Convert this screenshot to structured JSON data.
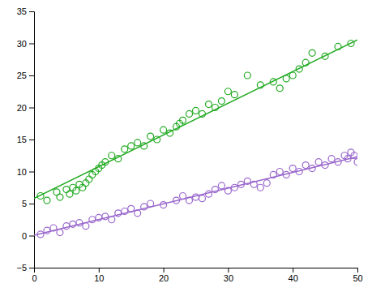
{
  "chart_data": {
    "type": "scatter",
    "xlim": [
      0,
      50
    ],
    "ylim": [
      -5,
      35
    ],
    "xticks": [
      0,
      10,
      20,
      30,
      40,
      50
    ],
    "yticks": [
      {
        "value": -5,
        "label": "−5"
      },
      0,
      5,
      10,
      15,
      20,
      25,
      30,
      35
    ],
    "grid": false,
    "series": [
      {
        "type": "line",
        "line_style": "solid",
        "color": "#22AA22",
        "x": [
          0,
          50
        ],
        "values": [
          5.8,
          30.55
        ]
      },
      {
        "type": "scatter",
        "marker": "circle",
        "color": "#22AA22",
        "x": [
          1.0,
          2.0,
          3.5,
          4.0,
          5.0,
          5.5,
          6.0,
          6.5,
          7.0,
          7.5,
          8.0,
          8.5,
          9.0,
          9.5,
          10.0,
          10.5,
          11.0,
          12.0,
          13.0,
          14.0,
          15.0,
          16.0,
          17.0,
          18.0,
          19.0,
          20.0,
          21.0,
          22.0,
          22.5,
          23.0,
          24.0,
          25.0,
          26.0,
          27.0,
          28.0,
          29.0,
          30.0,
          31.0,
          33.0,
          35.0,
          37.0,
          38.0,
          39.0,
          40.0,
          41.0,
          42.0,
          43.0,
          45.0,
          47.0,
          49.0
        ],
        "values": [
          6.2,
          5.5,
          6.8,
          6.0,
          7.2,
          6.5,
          7.5,
          7.0,
          8.0,
          7.5,
          8.2,
          8.8,
          9.5,
          10.0,
          10.5,
          11.0,
          11.5,
          12.5,
          12.0,
          13.5,
          14.0,
          14.5,
          14.0,
          15.5,
          15.0,
          16.5,
          16.0,
          17.0,
          17.5,
          18.0,
          19.0,
          19.5,
          19.0,
          20.5,
          20.0,
          21.0,
          22.5,
          22.0,
          25.0,
          23.5,
          24.0,
          23.0,
          24.5,
          25.0,
          26.0,
          27.0,
          28.5,
          28.0,
          29.5,
          30.0
        ]
      },
      {
        "type": "line",
        "line_style": "solid",
        "color": "#9966CC",
        "x": [
          0,
          50
        ],
        "values": [
          0.05,
          12.3
        ]
      },
      {
        "type": "scatter",
        "marker": "circle",
        "color": "#9966CC",
        "x": [
          1.0,
          2.0,
          3.0,
          4.0,
          5.0,
          6.0,
          7.0,
          8.0,
          9.0,
          10.0,
          11.0,
          12.0,
          13.0,
          14.0,
          15.0,
          16.0,
          17.0,
          18.0,
          20.0,
          22.0,
          23.0,
          24.0,
          25.0,
          26.0,
          27.0,
          28.0,
          29.0,
          30.0,
          31.0,
          32.0,
          33.0,
          34.0,
          35.0,
          36.0,
          37.0,
          38.0,
          39.0,
          40.0,
          41.0,
          42.0,
          43.0,
          44.0,
          45.0,
          46.0,
          47.0,
          48.0,
          48.5,
          49.0,
          49.5,
          50.0
        ],
        "values": [
          0.2,
          0.8,
          1.2,
          0.5,
          1.5,
          1.8,
          2.0,
          1.5,
          2.5,
          2.8,
          3.0,
          2.5,
          3.5,
          3.8,
          4.2,
          3.5,
          4.5,
          5.0,
          4.8,
          5.5,
          6.2,
          5.5,
          6.0,
          5.8,
          6.5,
          7.2,
          7.8,
          7.0,
          7.5,
          8.0,
          8.5,
          8.0,
          7.5,
          8.2,
          9.5,
          10.0,
          9.5,
          10.5,
          10.0,
          11.0,
          10.5,
          11.5,
          11.0,
          12.0,
          11.5,
          12.5,
          12.0,
          13.0,
          12.5,
          11.5
        ]
      }
    ]
  }
}
